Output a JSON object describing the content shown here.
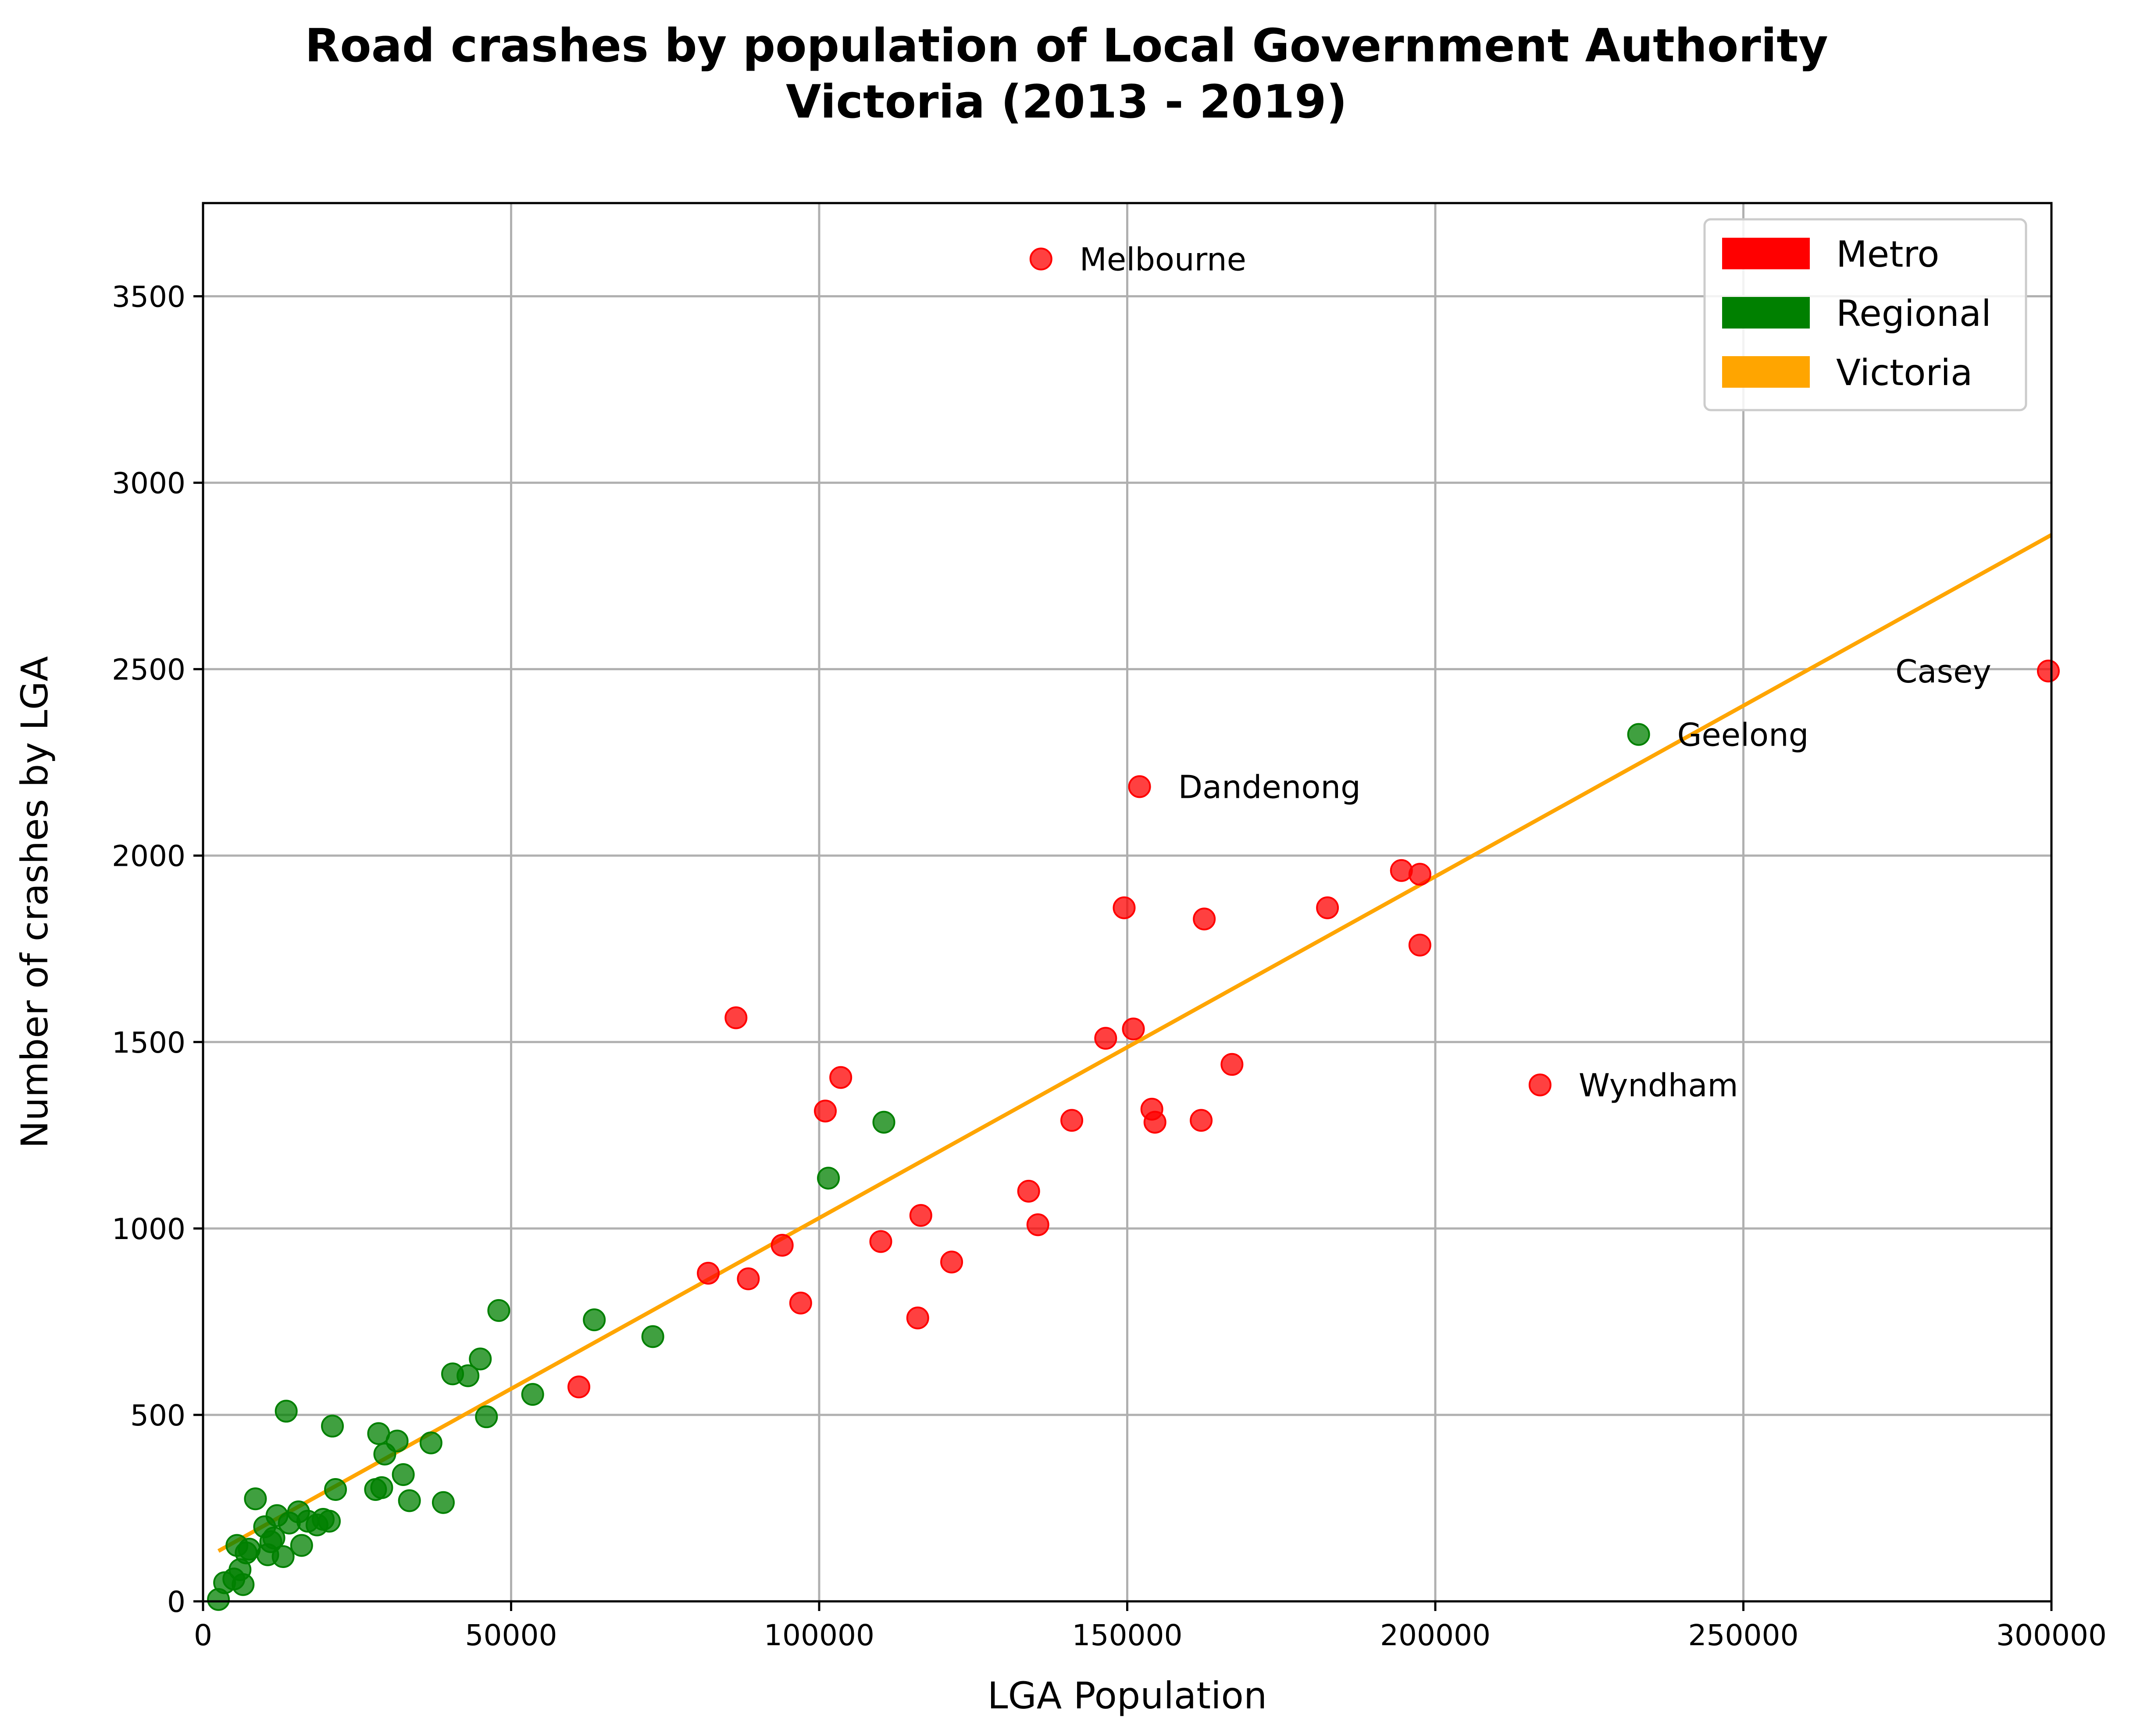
{
  "chart_data": {
    "type": "scatter",
    "title": "Road crashes by population of Local Government Authority\nVictoria (2013 - 2019)",
    "xlabel": "LGA Population",
    "ylabel": "Number of crashes by LGA",
    "xlim": [
      0,
      300000
    ],
    "ylim": [
      0,
      3750
    ],
    "xticks": [
      0,
      50000,
      100000,
      150000,
      200000,
      250000,
      300000
    ],
    "yticks": [
      0,
      500,
      1000,
      1500,
      2000,
      2500,
      3000,
      3500
    ],
    "grid": true,
    "legend_position": "top-right",
    "legend": [
      {
        "label": "Metro",
        "color": "#ff0000"
      },
      {
        "label": "Regional",
        "color": "#008000"
      },
      {
        "label": "Victoria",
        "color": "#ffa500"
      }
    ],
    "series": [
      {
        "name": "Metro",
        "color": "#ff0000",
        "points": [
          [
            136000,
            3600
          ],
          [
            152000,
            2185
          ],
          [
            217000,
            1385
          ],
          [
            299500,
            2495
          ],
          [
            194500,
            1960
          ],
          [
            197500,
            1950
          ],
          [
            197500,
            1760
          ],
          [
            182500,
            1860
          ],
          [
            162500,
            1830
          ],
          [
            149500,
            1860
          ],
          [
            151000,
            1535
          ],
          [
            146500,
            1510
          ],
          [
            167000,
            1440
          ],
          [
            154000,
            1320
          ],
          [
            154500,
            1285
          ],
          [
            162000,
            1290
          ],
          [
            141000,
            1290
          ],
          [
            134000,
            1100
          ],
          [
            135500,
            1010
          ],
          [
            121500,
            910
          ],
          [
            116500,
            1035
          ],
          [
            116000,
            760
          ],
          [
            110000,
            965
          ],
          [
            103500,
            1405
          ],
          [
            101000,
            1315
          ],
          [
            97000,
            800
          ],
          [
            94000,
            955
          ],
          [
            88500,
            865
          ],
          [
            86500,
            1565
          ],
          [
            82000,
            880
          ],
          [
            61000,
            575
          ]
        ]
      },
      {
        "name": "Regional",
        "color": "#008000",
        "points": [
          [
            233000,
            2325
          ],
          [
            110500,
            1285
          ],
          [
            101500,
            1135
          ],
          [
            73000,
            710
          ],
          [
            63500,
            755
          ],
          [
            53500,
            555
          ],
          [
            48000,
            780
          ],
          [
            45000,
            650
          ],
          [
            46000,
            495
          ],
          [
            43000,
            605
          ],
          [
            40500,
            610
          ],
          [
            37000,
            425
          ],
          [
            39000,
            265
          ],
          [
            33500,
            270
          ],
          [
            32500,
            340
          ],
          [
            31500,
            430
          ],
          [
            29500,
            395
          ],
          [
            28500,
            450
          ],
          [
            29000,
            305
          ],
          [
            28000,
            300
          ],
          [
            21500,
            300
          ],
          [
            21000,
            470
          ],
          [
            20500,
            215
          ],
          [
            19500,
            220
          ],
          [
            18500,
            205
          ],
          [
            17000,
            215
          ],
          [
            15500,
            240
          ],
          [
            16000,
            150
          ],
          [
            14000,
            210
          ],
          [
            13500,
            510
          ],
          [
            13000,
            120
          ],
          [
            12000,
            230
          ],
          [
            11500,
            170
          ],
          [
            11000,
            160
          ],
          [
            10500,
            125
          ],
          [
            10000,
            200
          ],
          [
            8500,
            275
          ],
          [
            7500,
            140
          ],
          [
            7000,
            130
          ],
          [
            6500,
            45
          ],
          [
            6000,
            85
          ],
          [
            5500,
            150
          ],
          [
            5000,
            60
          ],
          [
            3500,
            50
          ],
          [
            2500,
            5
          ]
        ]
      }
    ],
    "trend_line": {
      "name": "Victoria",
      "color": "#ffa500",
      "x": [
        2500,
        300000
      ],
      "y": [
        135,
        2860
      ]
    },
    "annotations": [
      {
        "text": "Melbourne",
        "x": 136000,
        "y": 3600,
        "align": "right"
      },
      {
        "text": "Dandenong",
        "x": 152000,
        "y": 2185,
        "align": "right"
      },
      {
        "text": "Wyndham",
        "x": 217000,
        "y": 1385,
        "align": "right"
      },
      {
        "text": "Geelong",
        "x": 233000,
        "y": 2325,
        "align": "right"
      },
      {
        "text": "Casey",
        "x": 299500,
        "y": 2495,
        "align": "left"
      }
    ]
  }
}
